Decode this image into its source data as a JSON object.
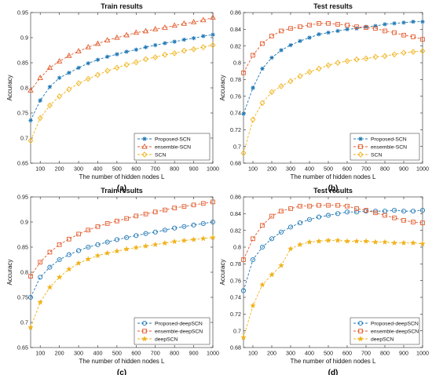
{
  "figure": {
    "colors": {
      "blue": "#1f77b4",
      "red": "#e35b2d",
      "yellow": "#f0b21a",
      "axis": "#262626",
      "grid": "#e6e6e6"
    }
  },
  "chart_data": [
    {
      "type": "line",
      "title": "Train results",
      "panel_label": "(a)",
      "xlabel": "The number of hidden nodes L",
      "ylabel": "Accuracy",
      "xlim": [
        50,
        1000
      ],
      "ylim": [
        0.65,
        0.95
      ],
      "xticks": [
        "100",
        "200",
        "300",
        "400",
        "500",
        "600",
        "700",
        "800",
        "900",
        "1000"
      ],
      "yticks": [
        "0.65",
        "0.7",
        "0.75",
        "0.8",
        "0.85",
        "0.9",
        "0.95"
      ],
      "grid": false,
      "legend_position": "bottom-right",
      "x": [
        50,
        100,
        150,
        200,
        250,
        300,
        350,
        400,
        450,
        500,
        550,
        600,
        650,
        700,
        750,
        800,
        850,
        900,
        950,
        1000
      ],
      "series": [
        {
          "name": "Proposed-SCN",
          "color": "blue",
          "marker": "asterisk-dot",
          "values": [
            0.735,
            0.775,
            0.802,
            0.82,
            0.83,
            0.84,
            0.849,
            0.856,
            0.862,
            0.867,
            0.872,
            0.876,
            0.881,
            0.885,
            0.889,
            0.892,
            0.896,
            0.899,
            0.903,
            0.906
          ]
        },
        {
          "name": "ensemble-SCN",
          "color": "red",
          "marker": "triangle",
          "values": [
            0.795,
            0.82,
            0.84,
            0.853,
            0.864,
            0.873,
            0.881,
            0.888,
            0.895,
            0.9,
            0.905,
            0.91,
            0.913,
            0.917,
            0.92,
            0.924,
            0.928,
            0.931,
            0.935,
            0.94
          ]
        },
        {
          "name": "SCN",
          "color": "yellow",
          "marker": "diamond",
          "values": [
            0.695,
            0.74,
            0.765,
            0.783,
            0.797,
            0.809,
            0.818,
            0.826,
            0.834,
            0.84,
            0.846,
            0.851,
            0.857,
            0.861,
            0.866,
            0.869,
            0.874,
            0.877,
            0.881,
            0.885
          ]
        }
      ]
    },
    {
      "type": "line",
      "title": "Test results",
      "panel_label": "(b)",
      "xlabel": "The number of hidden nodes L",
      "ylabel": "Accuracy",
      "xlim": [
        50,
        1000
      ],
      "ylim": [
        0.68,
        0.86
      ],
      "xticks": [
        "100",
        "200",
        "300",
        "400",
        "500",
        "600",
        "700",
        "800",
        "900",
        "1000"
      ],
      "yticks": [
        "0.68",
        "0.7",
        "0.72",
        "0.74",
        "0.76",
        "0.78",
        "0.8",
        "0.82",
        "0.84",
        "0.86"
      ],
      "grid": false,
      "legend_position": "bottom-right",
      "x": [
        50,
        100,
        150,
        200,
        250,
        300,
        350,
        400,
        450,
        500,
        550,
        600,
        650,
        700,
        750,
        800,
        850,
        900,
        950,
        1000
      ],
      "series": [
        {
          "name": "Proposed-SCN",
          "color": "blue",
          "marker": "asterisk-dot",
          "values": [
            0.739,
            0.77,
            0.793,
            0.806,
            0.815,
            0.821,
            0.826,
            0.83,
            0.834,
            0.836,
            0.838,
            0.84,
            0.841,
            0.843,
            0.844,
            0.846,
            0.847,
            0.848,
            0.849,
            0.849
          ]
        },
        {
          "name": "ensemble-SCN",
          "color": "red",
          "marker": "square",
          "values": [
            0.788,
            0.809,
            0.823,
            0.832,
            0.838,
            0.841,
            0.843,
            0.845,
            0.847,
            0.847,
            0.846,
            0.845,
            0.843,
            0.842,
            0.841,
            0.838,
            0.836,
            0.833,
            0.831,
            0.828
          ]
        },
        {
          "name": "SCN",
          "color": "yellow",
          "marker": "diamond",
          "values": [
            0.692,
            0.732,
            0.752,
            0.765,
            0.772,
            0.778,
            0.784,
            0.789,
            0.793,
            0.797,
            0.8,
            0.802,
            0.804,
            0.805,
            0.807,
            0.808,
            0.81,
            0.812,
            0.813,
            0.814
          ]
        }
      ]
    },
    {
      "type": "line",
      "title": "Train results",
      "panel_label": "(c)",
      "xlabel": "The number of hidden nodes L",
      "ylabel": "Accuracy",
      "xlim": [
        50,
        1000
      ],
      "ylim": [
        0.65,
        0.95
      ],
      "xticks": [
        "100",
        "200",
        "300",
        "400",
        "500",
        "600",
        "700",
        "800",
        "900",
        "1000"
      ],
      "yticks": [
        "0.65",
        "0.7",
        "0.75",
        "0.8",
        "0.85",
        "0.9",
        "0.95"
      ],
      "grid": false,
      "legend_position": "bottom-right",
      "x": [
        50,
        100,
        150,
        200,
        250,
        300,
        350,
        400,
        450,
        500,
        550,
        600,
        650,
        700,
        750,
        800,
        850,
        900,
        950,
        1000
      ],
      "series": [
        {
          "name": "Proposed-deepSCN",
          "color": "blue",
          "marker": "circle",
          "values": [
            0.75,
            0.79,
            0.81,
            0.825,
            0.835,
            0.843,
            0.85,
            0.855,
            0.86,
            0.865,
            0.869,
            0.873,
            0.877,
            0.88,
            0.884,
            0.888,
            0.891,
            0.894,
            0.897,
            0.9
          ]
        },
        {
          "name": "ensemble-deepSCN",
          "color": "red",
          "marker": "square",
          "values": [
            0.792,
            0.82,
            0.84,
            0.855,
            0.866,
            0.876,
            0.884,
            0.891,
            0.897,
            0.902,
            0.907,
            0.912,
            0.916,
            0.92,
            0.924,
            0.928,
            0.931,
            0.934,
            0.937,
            0.94
          ]
        },
        {
          "name": "deepSCN",
          "color": "yellow",
          "marker": "star",
          "values": [
            0.69,
            0.74,
            0.77,
            0.79,
            0.806,
            0.818,
            0.826,
            0.833,
            0.838,
            0.842,
            0.846,
            0.849,
            0.852,
            0.855,
            0.858,
            0.861,
            0.863,
            0.865,
            0.867,
            0.869
          ]
        }
      ]
    },
    {
      "type": "line",
      "title": "Test results",
      "panel_label": "(d)",
      "xlabel": "The number of hidden nodes L",
      "ylabel": "Accuracy",
      "xlim": [
        50,
        1000
      ],
      "ylim": [
        0.68,
        0.86
      ],
      "xticks": [
        "100",
        "200",
        "300",
        "400",
        "500",
        "600",
        "700",
        "800",
        "900",
        "1000"
      ],
      "yticks": [
        "0.68",
        "0.7",
        "0.72",
        "0.74",
        "0.76",
        "0.78",
        "0.8",
        "0.82",
        "0.84",
        "0.86"
      ],
      "grid": false,
      "legend_position": "bottom-right",
      "x": [
        50,
        100,
        150,
        200,
        250,
        300,
        350,
        400,
        450,
        500,
        550,
        600,
        650,
        700,
        750,
        800,
        850,
        900,
        950,
        1000
      ],
      "series": [
        {
          "name": "Proposed-deepSCN",
          "color": "blue",
          "marker": "circle",
          "values": [
            0.748,
            0.785,
            0.8,
            0.81,
            0.818,
            0.824,
            0.829,
            0.833,
            0.836,
            0.838,
            0.84,
            0.842,
            0.842,
            0.843,
            0.843,
            0.843,
            0.844,
            0.843,
            0.843,
            0.844
          ]
        },
        {
          "name": "ensemble-deepSCN",
          "color": "red",
          "marker": "square",
          "values": [
            0.785,
            0.81,
            0.826,
            0.837,
            0.843,
            0.846,
            0.849,
            0.849,
            0.85,
            0.85,
            0.85,
            0.849,
            0.846,
            0.844,
            0.841,
            0.838,
            0.835,
            0.832,
            0.83,
            0.829
          ]
        },
        {
          "name": "deepSCN",
          "color": "yellow",
          "marker": "star",
          "values": [
            0.692,
            0.73,
            0.755,
            0.767,
            0.778,
            0.798,
            0.803,
            0.806,
            0.807,
            0.808,
            0.808,
            0.807,
            0.807,
            0.807,
            0.806,
            0.806,
            0.805,
            0.805,
            0.805,
            0.804
          ]
        }
      ]
    }
  ]
}
